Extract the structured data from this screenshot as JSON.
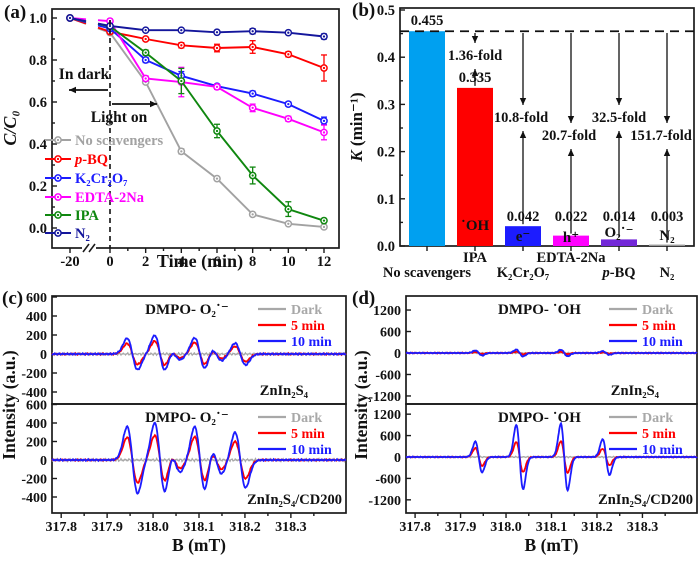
{
  "panel_letters": [
    "(a)",
    "(b)",
    "(c)",
    "(d)"
  ],
  "colors": {
    "axis": "#1a1a1a",
    "gray": "#a2a2a2",
    "red": "#fe0000",
    "blue": "#1c1cff",
    "magenta": "#ff00fe",
    "green": "#0f870f",
    "navy": "#14169c",
    "cyan_bar": "#00a0f0",
    "purple_bar": "#7328d8",
    "n2_bar": "#999999",
    "dark_gray": "#a8a8a8"
  },
  "chart_data": [
    {
      "id": "a",
      "type": "line",
      "xlabel": "Time (min)",
      "ylabel": "C/C₀",
      "xticks": [
        -20,
        0,
        2,
        4,
        6,
        8,
        10,
        12
      ],
      "yticks": [
        "1.0",
        "0.8",
        "0.6",
        "0.4",
        "0.2",
        "0.0"
      ],
      "axis_break": "x axis break between -20 and 0",
      "annotations": {
        "in_dark": "In dark",
        "light_on": "Light on"
      },
      "x": [
        -20,
        0,
        2,
        4,
        6,
        8,
        10,
        12
      ],
      "series": [
        {
          "name": "No scavengers",
          "color_key": "gray",
          "y": [
            1.0,
            0.93,
            0.695,
            0.365,
            0.235,
            0.065,
            0.02,
            0.005
          ],
          "err": [
            0,
            0,
            0,
            0.012,
            0,
            0,
            0,
            0
          ]
        },
        {
          "name": "p-BQ",
          "name_segments": [
            [
              "p",
              true
            ],
            [
              "-BQ",
              false
            ]
          ],
          "color_key": "red",
          "y": [
            1.0,
            0.935,
            0.9,
            0.87,
            0.857,
            0.862,
            0.827,
            0.762
          ],
          "err": [
            0,
            0,
            0,
            0.012,
            0.018,
            0.03,
            0.012,
            0.062
          ]
        },
        {
          "name": "K₂Cr₂O₇",
          "color_key": "blue",
          "y": [
            1.0,
            0.95,
            0.8,
            0.725,
            0.675,
            0.64,
            0.59,
            0.51
          ],
          "err": [
            0,
            0,
            0.012,
            0.02,
            0.01,
            0.012,
            0.01,
            0.018
          ]
        },
        {
          "name": "EDTA-2Na",
          "color_key": "magenta",
          "y": [
            1.0,
            0.985,
            0.712,
            0.695,
            0.672,
            0.572,
            0.52,
            0.455
          ],
          "err": [
            0,
            0.01,
            0.012,
            0.07,
            0.012,
            0.018,
            0.012,
            0.035
          ]
        },
        {
          "name": "IPA",
          "color_key": "green",
          "y": [
            1.0,
            0.96,
            0.835,
            0.7,
            0.462,
            0.25,
            0.09,
            0.035
          ],
          "err": [
            0,
            0,
            0.012,
            0.06,
            0.032,
            0.04,
            0.035,
            0.01
          ]
        },
        {
          "name": "N₂",
          "color_key": "navy",
          "y": [
            1.0,
            0.962,
            0.942,
            0.942,
            0.932,
            0.937,
            0.93,
            0.912
          ],
          "err": [
            0,
            0,
            0.006,
            0.006,
            0.006,
            0.012,
            0.006,
            0.012
          ]
        }
      ]
    },
    {
      "id": "b",
      "type": "bar",
      "ylabel": "K (min⁻¹)",
      "ylabel_segments": [
        [
          "K",
          true
        ],
        [
          " (min⁻¹)",
          false
        ]
      ],
      "yticks": [
        "0.0",
        "0.1",
        "0.2",
        "0.3",
        "0.4",
        "0.5"
      ],
      "ylim": [
        0,
        0.5
      ],
      "dashed_reference": 0.455,
      "bars": [
        {
          "label": "No scavengers",
          "row": 2,
          "value": 0.455,
          "value_label": "0.455",
          "color_key": "cyan_bar",
          "species": ""
        },
        {
          "label": "IPA",
          "row": 1,
          "value": 0.335,
          "value_label": "0.335",
          "color_key": "red",
          "species": "˙OH"
        },
        {
          "label": "K₂Cr₂O₇",
          "row": 2,
          "value": 0.042,
          "value_label": "0.042",
          "color_key": "blue",
          "species": "e⁻"
        },
        {
          "label": "EDTA-2Na",
          "row": 1,
          "value": 0.022,
          "value_label": "0.022",
          "color_key": "magenta",
          "species": "h⁺"
        },
        {
          "label": "p-BQ",
          "label_segments": [
            [
              "p",
              true
            ],
            [
              "-BQ",
              false
            ]
          ],
          "row": 2,
          "value": 0.014,
          "value_label": "0.014",
          "color_key": "purple_bar",
          "species": "O₂˙⁻"
        },
        {
          "label": "N₂",
          "row": 2,
          "value": 0.003,
          "value_label": "0.003",
          "color_key": "n2_bar",
          "species": "N₂"
        }
      ],
      "folds": [
        "1.36-fold",
        "10.8-fold",
        "20.7-fold",
        "32.5-fold",
        "151.7-fold"
      ]
    },
    {
      "id": "c",
      "type": "line",
      "xlabel": "B (mT)",
      "ylabel": "Intensity (a.u.)",
      "xticks": [
        "317.8",
        "317.9",
        "318.0",
        "318.1",
        "318.2",
        "318.3"
      ],
      "subpanels": [
        {
          "sample": "ZnIn₂S₄",
          "title": "DMPO- O₂˙⁻",
          "yticks": [
            600,
            400,
            200,
            0,
            -200,
            -400
          ],
          "legend": [
            "Dark",
            "5 min",
            "10 min"
          ],
          "peak_width": 0.0115,
          "series": [
            {
              "name": "Dark",
              "color_key": "dark_gray",
              "noise": 14,
              "peaks": []
            },
            {
              "name": "5 min",
              "color_key": "red",
              "noise": 9,
              "peaks": [
                [
                  317.955,
                  110
                ],
                [
                  318.015,
                  135
                ],
                [
                  318.048,
                  42
                ],
                [
                  318.102,
                  120
                ],
                [
                  318.138,
                  48
                ],
                [
                  318.19,
                  80
                ]
              ]
            },
            {
              "name": "10 min",
              "color_key": "blue",
              "noise": 9,
              "peaks": [
                [
                  317.955,
                  165
                ],
                [
                  318.015,
                  195
                ],
                [
                  318.048,
                  60
                ],
                [
                  318.102,
                  170
                ],
                [
                  318.138,
                  70
                ],
                [
                  318.19,
                  115
                ]
              ]
            }
          ]
        },
        {
          "sample": "ZnIn₂S₄/CD200",
          "title": "DMPO- O₂˙⁻",
          "yticks": [
            600,
            400,
            200,
            0,
            -200,
            -400
          ],
          "legend": [
            "Dark",
            "5 min",
            "10 min"
          ],
          "peak_width": 0.0115,
          "series": [
            {
              "name": "Dark",
              "color_key": "dark_gray",
              "noise": 16,
              "peaks": []
            },
            {
              "name": "5 min",
              "color_key": "red",
              "noise": 9,
              "peaks": [
                [
                  317.955,
                  245
                ],
                [
                  318.015,
                  265
                ],
                [
                  318.048,
                  90
                ],
                [
                  318.102,
                  250
                ],
                [
                  318.138,
                  100
                ],
                [
                  318.19,
                  200
                ]
              ]
            },
            {
              "name": "10 min",
              "color_key": "blue",
              "noise": 9,
              "peaks": [
                [
                  317.955,
                  360
                ],
                [
                  318.015,
                  400
                ],
                [
                  318.048,
                  130
                ],
                [
                  318.102,
                  360
                ],
                [
                  318.138,
                  150
                ],
                [
                  318.19,
                  300
                ]
              ]
            }
          ]
        }
      ]
    },
    {
      "id": "d",
      "type": "line",
      "xlabel": "B (mT)",
      "ylabel": "Intensity (a.u.)",
      "xticks": [
        "317.8",
        "317.9",
        "318.0",
        "318.1",
        "318.2",
        "318.3"
      ],
      "subpanels": [
        {
          "sample": "ZnIn₂S₄",
          "title": "DMPO- ˙OH",
          "yticks": [
            1200,
            600,
            0,
            -600,
            -1200
          ],
          "legend": [
            "Dark",
            "5 min",
            "10 min"
          ],
          "peak_width": 0.0075,
          "series": [
            {
              "name": "Dark",
              "color_key": "dark_gray",
              "noise": 20,
              "peaks": []
            },
            {
              "name": "5 min",
              "color_key": "red",
              "noise": 14,
              "peaks": [
                [
                  317.94,
                  25
                ],
                [
                  318.03,
                  35
                ],
                [
                  318.128,
                  32
                ],
                [
                  318.22,
                  18
                ]
              ]
            },
            {
              "name": "10 min",
              "color_key": "blue",
              "noise": 14,
              "peaks": [
                [
                  317.94,
                  70
                ],
                [
                  318.03,
                  95
                ],
                [
                  318.128,
                  90
                ],
                [
                  318.22,
                  50
                ]
              ]
            }
          ]
        },
        {
          "sample": "ZnIn₂S₄/CD200",
          "title": "DMPO- ˙OH",
          "yticks": [
            1200,
            600,
            0,
            -600,
            -1200
          ],
          "legend": [
            "Dark",
            "5 min",
            "10 min"
          ],
          "peak_width": 0.0075,
          "series": [
            {
              "name": "Dark",
              "color_key": "dark_gray",
              "noise": 22,
              "peaks": []
            },
            {
              "name": "5 min",
              "color_key": "red",
              "noise": 14,
              "peaks": [
                [
                  317.94,
                  250
                ],
                [
                  318.03,
                  420
                ],
                [
                  318.128,
                  440
                ],
                [
                  318.22,
                  230
                ]
              ]
            },
            {
              "name": "10 min",
              "color_key": "blue",
              "noise": 14,
              "peaks": [
                [
                  317.94,
                  430
                ],
                [
                  318.03,
                  900
                ],
                [
                  318.128,
                  930
                ],
                [
                  318.22,
                  500
                ]
              ]
            }
          ]
        }
      ]
    }
  ]
}
